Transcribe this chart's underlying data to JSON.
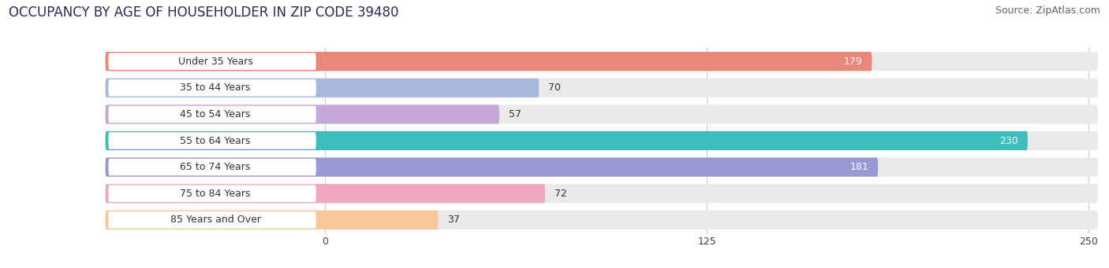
{
  "title": "OCCUPANCY BY AGE OF HOUSEHOLDER IN ZIP CODE 39480",
  "source": "Source: ZipAtlas.com",
  "categories": [
    "Under 35 Years",
    "35 to 44 Years",
    "45 to 54 Years",
    "55 to 64 Years",
    "65 to 74 Years",
    "75 to 84 Years",
    "85 Years and Over"
  ],
  "values": [
    179,
    70,
    57,
    230,
    181,
    72,
    37
  ],
  "bar_colors": [
    "#E8877A",
    "#A8B8DF",
    "#C4A8D8",
    "#3DBDBD",
    "#9898D4",
    "#F0A8C0",
    "#F8C898"
  ],
  "bar_bg_color": "#EAEAEA",
  "label_bg_color": "#FFFFFF",
  "xlim_min": 0,
  "xlim_max": 250,
  "xticks": [
    0,
    125,
    250
  ],
  "title_fontsize": 12,
  "source_fontsize": 9,
  "label_fontsize": 9,
  "value_fontsize": 9,
  "background_color": "#FFFFFF",
  "grid_color": "#CCCCCC",
  "text_color": "#333333",
  "white_text_threshold": 130
}
